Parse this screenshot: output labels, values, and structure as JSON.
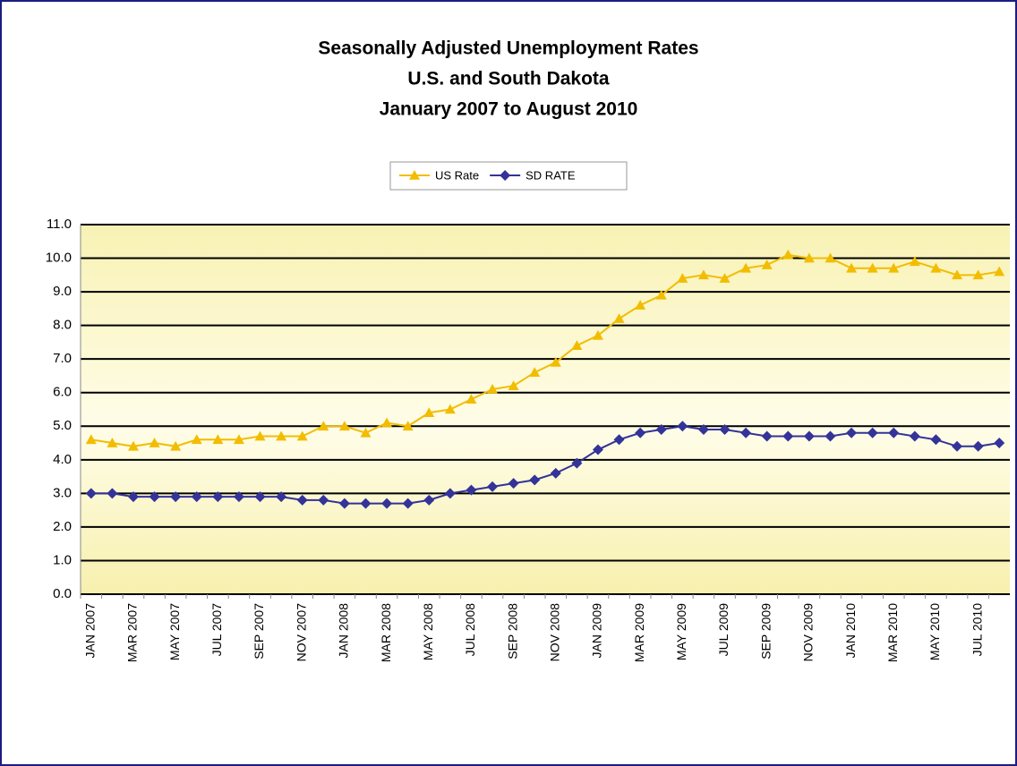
{
  "chart_data": {
    "type": "line",
    "title": [
      "Seasonally Adjusted Unemployment Rates",
      "U.S. and South Dakota",
      "January 2007 to August 2010"
    ],
    "categories": [
      "JAN 2007",
      null,
      "MAR 2007",
      null,
      "MAY 2007",
      null,
      "JUL 2007",
      null,
      "SEP 2007",
      null,
      "NOV 2007",
      null,
      "JAN 2008",
      null,
      "MAR 2008",
      null,
      "MAY 2008",
      null,
      "JUL 2008",
      null,
      "SEP 2008",
      null,
      "NOV 2008",
      null,
      "JAN 2009",
      null,
      "MAR 2009",
      null,
      "MAY 2009",
      null,
      "JUL 2009",
      null,
      "SEP 2009",
      null,
      "NOV 2009",
      null,
      "JAN 2010",
      null,
      "MAR 2010",
      null,
      "MAY 2010",
      null,
      "JUL 2010",
      null
    ],
    "series": [
      {
        "name": "US Rate",
        "color": "#f2bd00",
        "marker": "triangle",
        "values": [
          4.6,
          4.5,
          4.4,
          4.5,
          4.4,
          4.6,
          4.6,
          4.6,
          4.7,
          4.7,
          4.7,
          5.0,
          5.0,
          4.8,
          5.1,
          5.0,
          5.4,
          5.5,
          5.8,
          6.1,
          6.2,
          6.6,
          6.9,
          7.4,
          7.7,
          8.2,
          8.6,
          8.9,
          9.4,
          9.5,
          9.4,
          9.7,
          9.8,
          10.1,
          10.0,
          10.0,
          9.7,
          9.7,
          9.7,
          9.9,
          9.7,
          9.5,
          9.5,
          9.6
        ]
      },
      {
        "name": "SD RATE",
        "color": "#333399",
        "marker": "diamond",
        "values": [
          3.0,
          3.0,
          2.9,
          2.9,
          2.9,
          2.9,
          2.9,
          2.9,
          2.9,
          2.9,
          2.8,
          2.8,
          2.7,
          2.7,
          2.7,
          2.7,
          2.8,
          3.0,
          3.1,
          3.2,
          3.3,
          3.4,
          3.6,
          3.9,
          4.3,
          4.6,
          4.8,
          4.9,
          5.0,
          4.9,
          4.9,
          4.8,
          4.7,
          4.7,
          4.7,
          4.7,
          4.8,
          4.8,
          4.8,
          4.7,
          4.6,
          4.4,
          4.4,
          4.5
        ]
      }
    ],
    "ylim": [
      0,
      11
    ],
    "yticks": [
      {
        "value": 0,
        "label": "0.0"
      },
      {
        "value": 1,
        "label": "1.0"
      },
      {
        "value": 2,
        "label": "2.0"
      },
      {
        "value": 3,
        "label": "3.0"
      },
      {
        "value": 4,
        "label": "4.0"
      },
      {
        "value": 5,
        "label": "5.0"
      },
      {
        "value": 6,
        "label": "6.0"
      },
      {
        "value": 7,
        "label": "7.0"
      },
      {
        "value": 8,
        "label": "8.0"
      },
      {
        "value": 9,
        "label": "9.0"
      },
      {
        "value": 10,
        "label": "10.0"
      },
      {
        "value": 11,
        "label": "11.0"
      }
    ],
    "grid": true,
    "legend": "top"
  }
}
